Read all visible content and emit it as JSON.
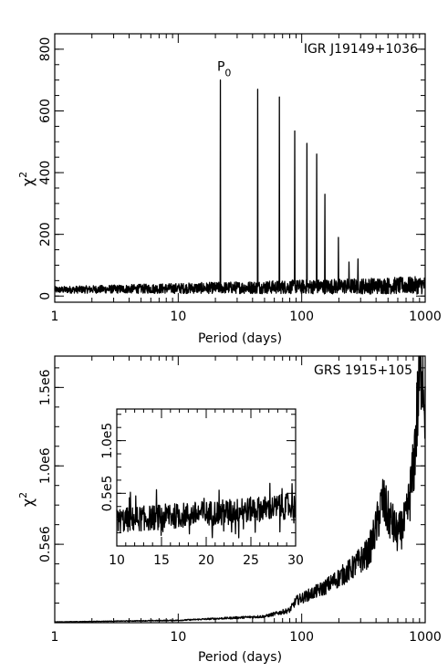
{
  "chart_data": [
    {
      "type": "line",
      "title": "IGR J19149+1036",
      "xlabel": "Period (days)",
      "ylabel": "χ",
      "ylabel_sup": "2",
      "xscale": "log",
      "xlim": [
        1,
        1000
      ],
      "ylim": [
        -20,
        850
      ],
      "xticks": [
        1,
        10,
        100,
        1000
      ],
      "xtick_labels": [
        "1",
        "10",
        "100",
        "1000"
      ],
      "yticks": [
        0,
        200,
        400,
        600,
        800
      ],
      "ytick_labels": [
        "0",
        "200",
        "400",
        "600",
        "800"
      ],
      "annotation": {
        "text": "P",
        "sub": "0",
        "x": 22,
        "y": 700
      },
      "baseline": {
        "x_start": 1,
        "x_end": 1000,
        "level_start": 20,
        "level_end": 35,
        "noise": 18
      },
      "peaks": [
        {
          "x": 22,
          "y": 700
        },
        {
          "x": 44,
          "y": 670
        },
        {
          "x": 66,
          "y": 645
        },
        {
          "x": 88,
          "y": 535
        },
        {
          "x": 110,
          "y": 495
        },
        {
          "x": 132,
          "y": 460
        },
        {
          "x": 154,
          "y": 330
        },
        {
          "x": 198,
          "y": 190
        },
        {
          "x": 242,
          "y": 110
        },
        {
          "x": 286,
          "y": 120
        }
      ],
      "grid": false,
      "legend": "none"
    },
    {
      "type": "line",
      "title": "GRS 1915+105",
      "xlabel": "Period (days)",
      "ylabel": "χ",
      "ylabel_sup": "2",
      "xscale": "log",
      "xlim": [
        1,
        1000
      ],
      "ylim": [
        0,
        1700000
      ],
      "xticks": [
        1,
        10,
        100,
        1000
      ],
      "xtick_labels": [
        "1",
        "10",
        "100",
        "1000"
      ],
      "yticks": [
        500000,
        1000000,
        1500000
      ],
      "ytick_labels": [
        "0.5e6",
        "1.0e6",
        "1.5e6"
      ],
      "trend_points": [
        {
          "x": 1,
          "y": 5000
        },
        {
          "x": 10,
          "y": 15000
        },
        {
          "x": 50,
          "y": 40000
        },
        {
          "x": 80,
          "y": 80000
        },
        {
          "x": 90,
          "y": 140000
        },
        {
          "x": 150,
          "y": 220000
        },
        {
          "x": 250,
          "y": 340000
        },
        {
          "x": 350,
          "y": 450000
        },
        {
          "x": 400,
          "y": 600000
        },
        {
          "x": 450,
          "y": 780000
        },
        {
          "x": 500,
          "y": 690000
        },
        {
          "x": 600,
          "y": 560000
        },
        {
          "x": 700,
          "y": 650000
        },
        {
          "x": 800,
          "y": 960000
        },
        {
          "x": 900,
          "y": 1560000
        },
        {
          "x": 940,
          "y": 1750000
        },
        {
          "x": 1000,
          "y": 1400000
        }
      ],
      "noise_fraction": 0.22,
      "grid": false,
      "legend": "none",
      "inset": {
        "xlim": [
          10,
          30
        ],
        "ylim": [
          0,
          130000
        ],
        "xticks": [
          10,
          15,
          20,
          25,
          30
        ],
        "xtick_labels": [
          "10",
          "15",
          "20",
          "25",
          "30"
        ],
        "yticks": [
          50000,
          100000
        ],
        "ytick_labels": [
          "0.5e5",
          "1.0e5"
        ],
        "level_start": 24000,
        "level_end": 38000,
        "noise": 12000
      }
    }
  ]
}
